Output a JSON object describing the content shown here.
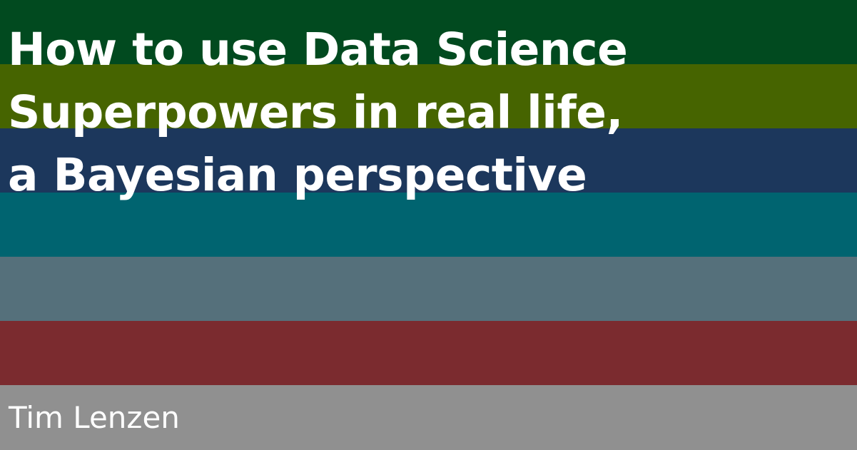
{
  "title": {
    "lines": [
      "How to use Data Science",
      "Superpowers in real life,",
      "a Bayesian perspective"
    ]
  },
  "author": "Tim Lenzen",
  "colors": {
    "stripes": [
      "#014a1f",
      "#466400",
      "#1c375c",
      "#006470",
      "#55707b",
      "#7b2b2f",
      "#909090"
    ],
    "text": "#ffffff"
  }
}
